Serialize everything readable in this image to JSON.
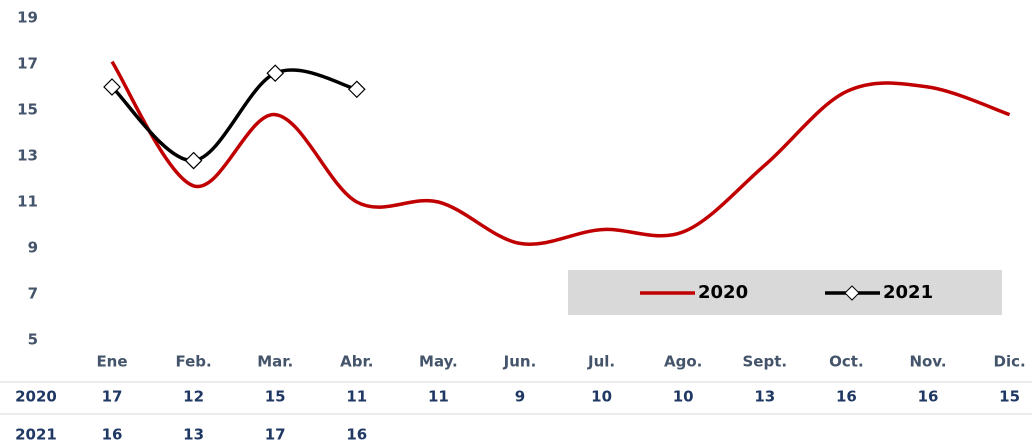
{
  "chart_data": {
    "type": "line",
    "categories": [
      "Ene",
      "Feb.",
      "Mar.",
      "Abr.",
      "May.",
      "Jun.",
      "Jul.",
      "Ago.",
      "Sept.",
      "Oct.",
      "Nov.",
      "Dic."
    ],
    "series": [
      {
        "name": "2020",
        "color": "#c00000",
        "marker": false,
        "values": [
          17.1,
          11.7,
          14.8,
          11.0,
          11.0,
          9.2,
          9.8,
          9.7,
          12.6,
          15.8,
          16.0,
          14.8
        ],
        "value_labels": [
          "17",
          "12",
          "15",
          "11",
          "11",
          "9",
          "10",
          "10",
          "13",
          "16",
          "16",
          "15"
        ]
      },
      {
        "name": "2021",
        "color": "#000000",
        "marker": true,
        "values": [
          16.0,
          12.8,
          16.6,
          15.9,
          null,
          null,
          null,
          null,
          null,
          null,
          null,
          null
        ],
        "value_labels": [
          "16",
          "13",
          "17",
          "16",
          null,
          null,
          null,
          null,
          null,
          null,
          null,
          null
        ]
      }
    ],
    "ylim": [
      5,
      19
    ],
    "yticks": [
      5,
      7,
      9,
      11,
      13,
      15,
      17,
      19
    ],
    "grid": false,
    "legend": "lower-right"
  }
}
